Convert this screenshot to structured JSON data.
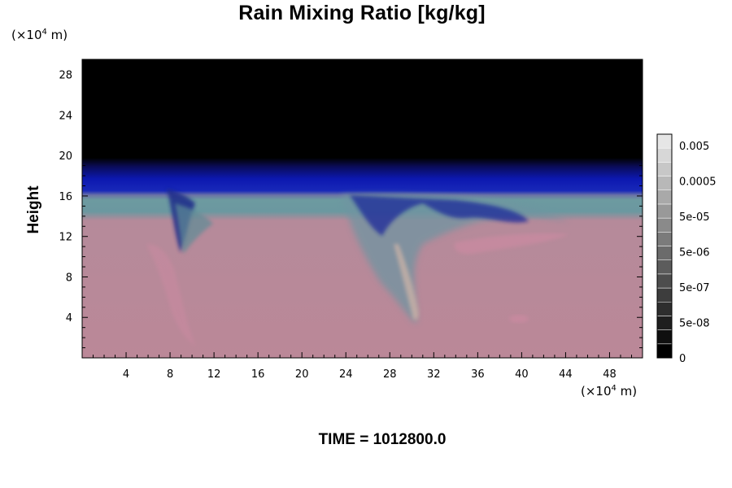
{
  "chart_data": {
    "type": "heatmap",
    "title": "Rain Mixing Ratio [kg/kg]",
    "ylabel": "Height",
    "xlabel": "",
    "x_unit": "(×10⁴ m)",
    "y_unit": "(×10⁴ m)",
    "x_ticks": [
      4,
      8,
      12,
      16,
      20,
      24,
      28,
      32,
      36,
      40,
      44,
      48
    ],
    "y_ticks": [
      4,
      8,
      12,
      16,
      20,
      24,
      28
    ],
    "xlim": [
      0,
      51
    ],
    "ylim": [
      0,
      29.5
    ],
    "colorbar": {
      "labels": [
        "0.005",
        "0.0005",
        "5e-05",
        "5e-06",
        "5e-07",
        "5e-08",
        "0"
      ],
      "levels": 16
    },
    "field": {
      "top_layer": {
        "color": "#000000",
        "y_from": 19.5,
        "y_to": 29.5
      },
      "blue_layer": {
        "color": "#0a14a5",
        "y_from": 16.5,
        "y_to": 19.5
      },
      "teal_layer": {
        "color": "#5f9a9c",
        "y_from": 13.5,
        "y_to": 16.5
      },
      "lower_layer": {
        "color": "#b98799",
        "y_from": 0,
        "y_to": 13.5
      }
    },
    "footer": "TIME = 1012800.0"
  }
}
